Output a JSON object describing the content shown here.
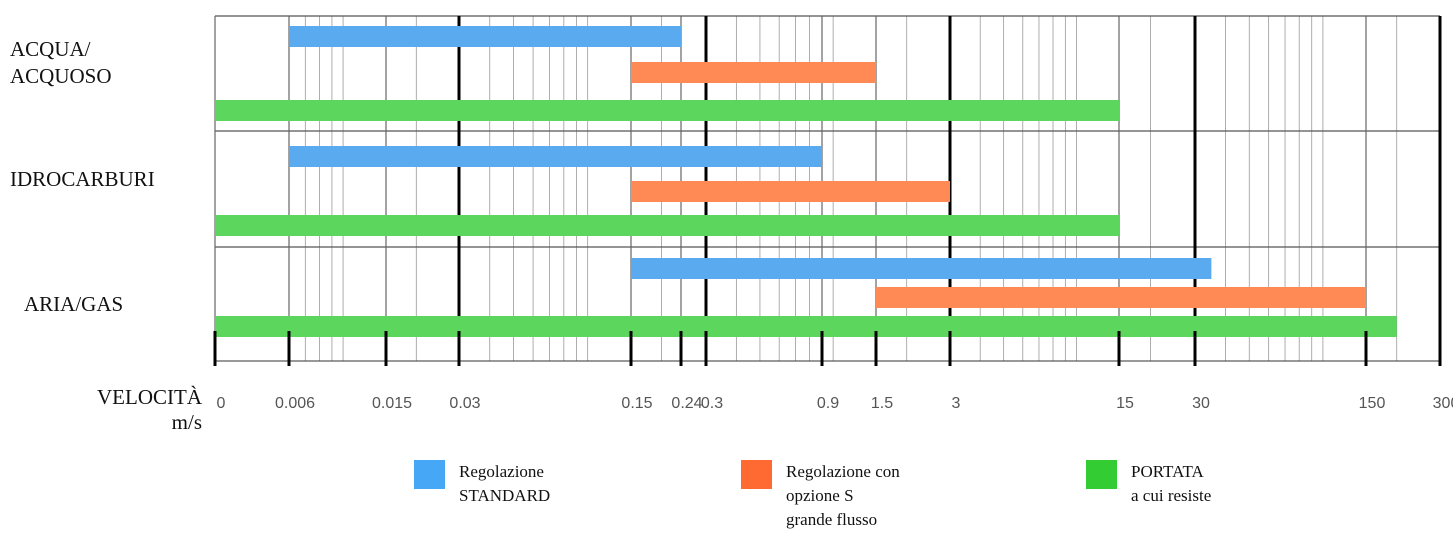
{
  "chart_data": {
    "type": "bar",
    "orientation": "horizontal-range",
    "categories": [
      "ACQUA/\nACQUOSO",
      "IDROCARBURI",
      "ARIA/GAS"
    ],
    "x_scale": "nonlinear (log-like)",
    "x_ticks": [
      "0",
      "0.006",
      "0.015",
      "0.03",
      "0.15",
      "0.24",
      "0.3",
      "0.9",
      "1.5",
      "3",
      "15",
      "30",
      "150",
      "300"
    ],
    "xlabel": "VELOCITÀ\nm/s",
    "series": [
      {
        "name": "Regolazione\nSTANDARD",
        "color": "#5aaaf0",
        "ranges": [
          [
            0.006,
            0.24
          ],
          [
            0.006,
            0.9
          ],
          [
            0.15,
            35
          ]
        ]
      },
      {
        "name": "Regolazione con\nopzione S\ngrande flusso",
        "color": "#ff8a55",
        "ranges": [
          [
            0.15,
            1.5
          ],
          [
            0.15,
            3
          ],
          [
            1.5,
            150
          ]
        ]
      },
      {
        "name": "PORTATA\na cui resiste",
        "color": "#5cd65c",
        "ranges": [
          [
            0,
            15
          ],
          [
            0,
            15
          ],
          [
            0,
            200
          ]
        ]
      }
    ],
    "legend_position": "bottom"
  },
  "legend_colors": [
    "#45a7f5",
    "#ff6a33",
    "#33cc33"
  ]
}
